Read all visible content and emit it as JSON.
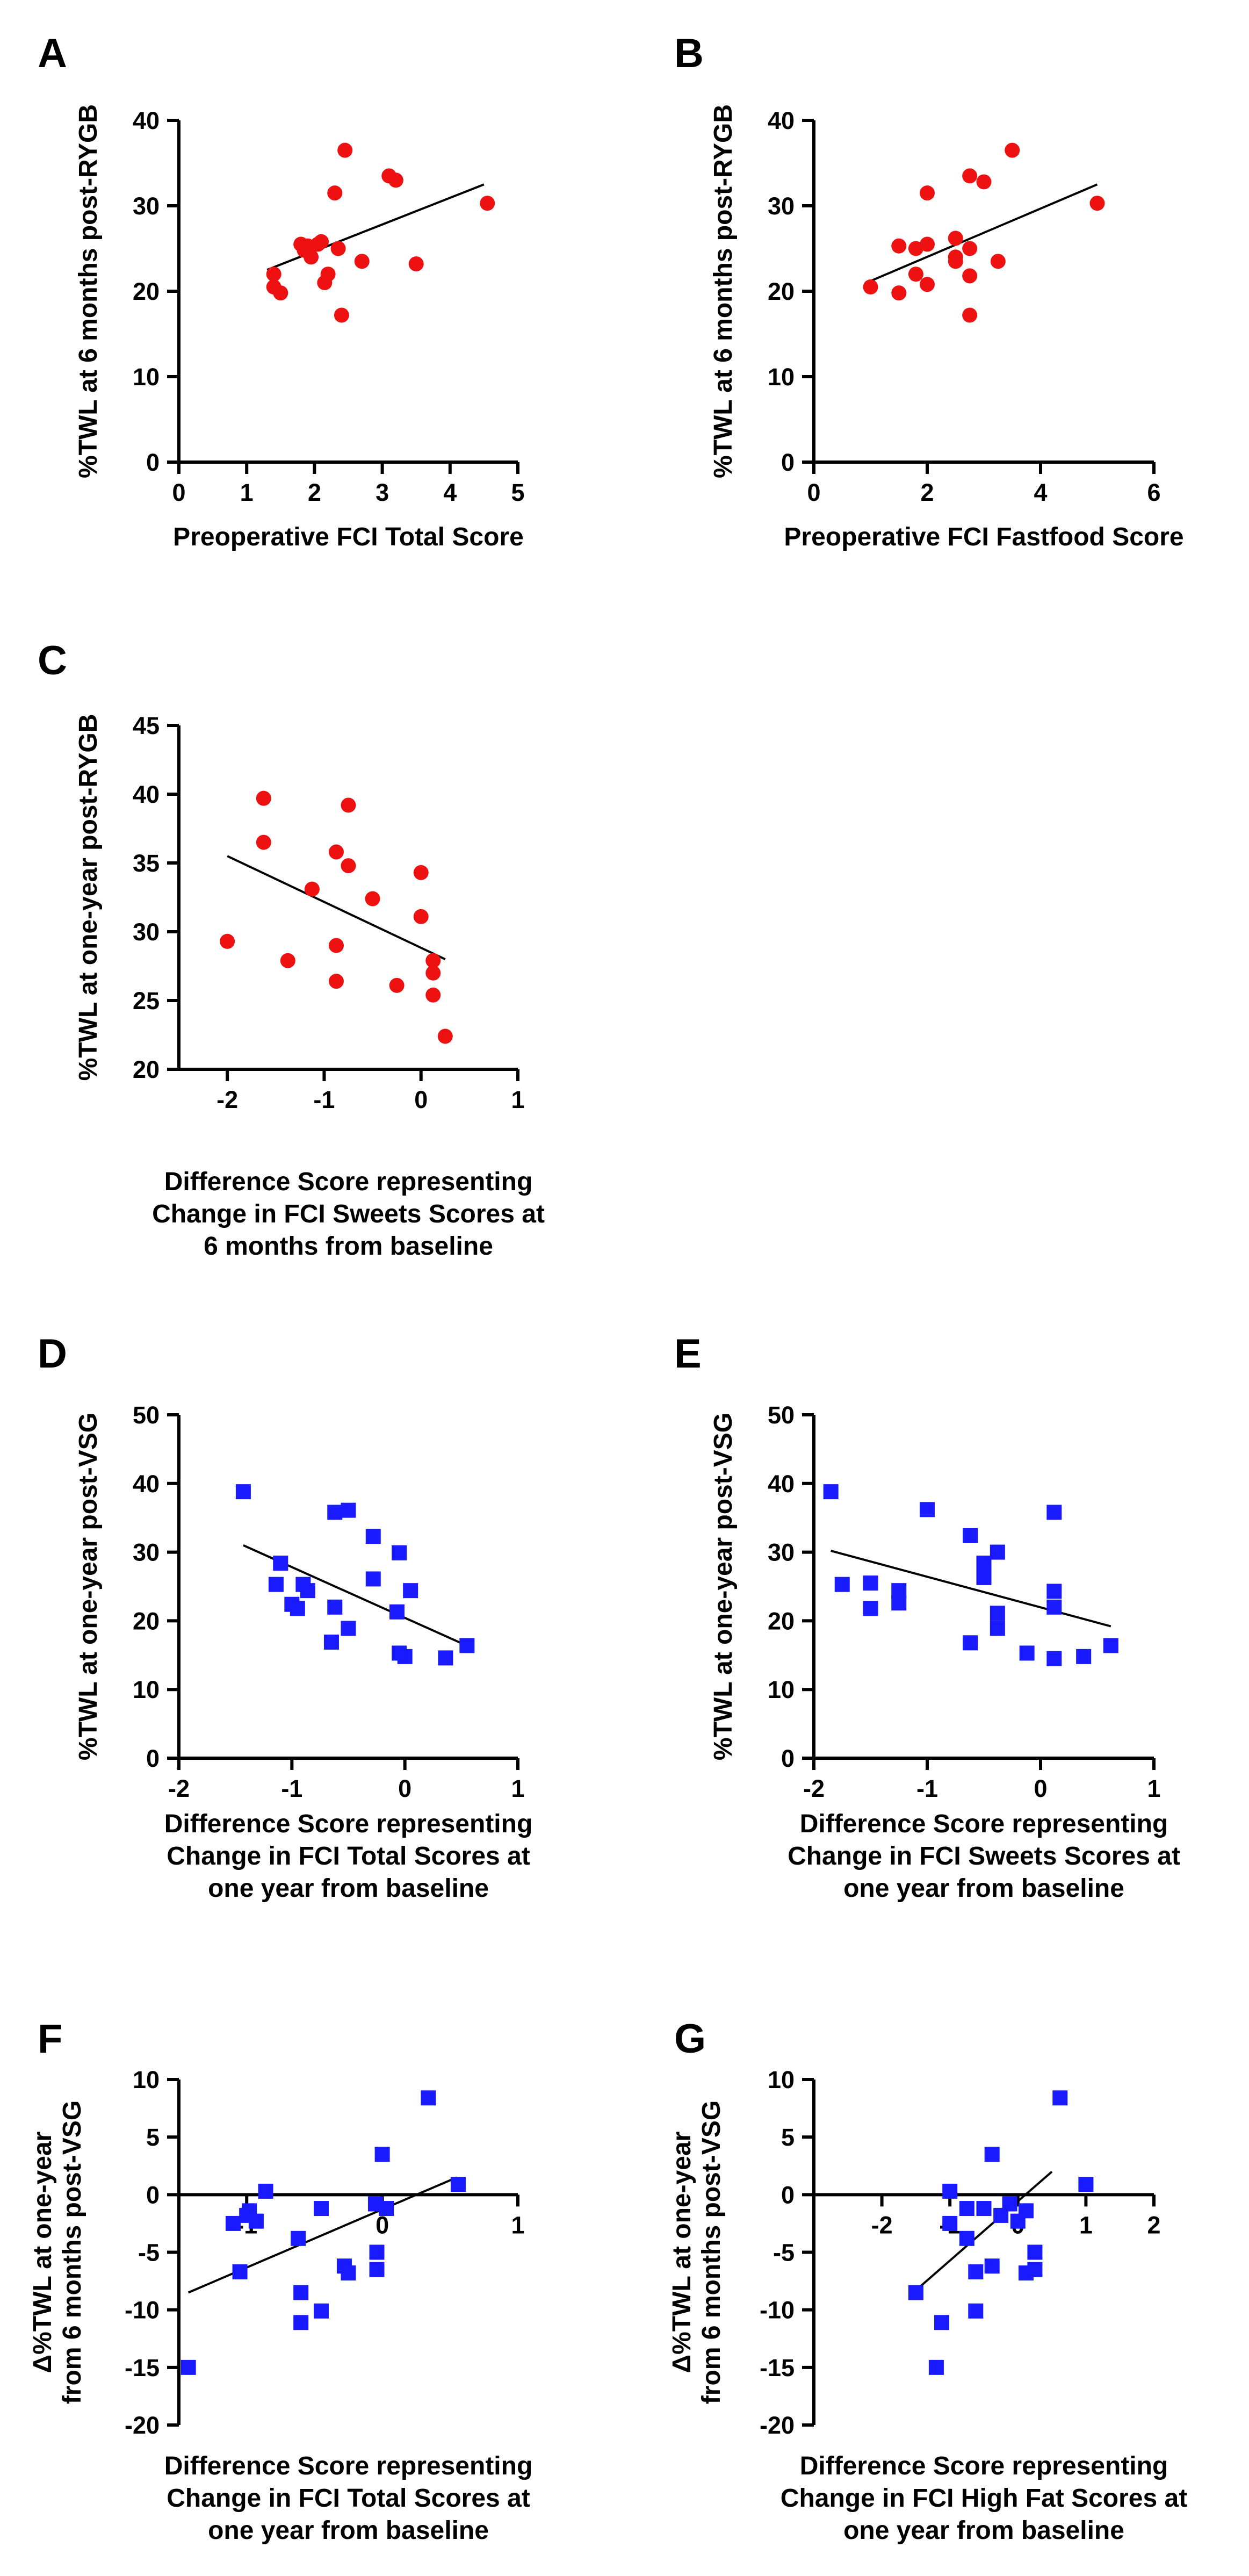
{
  "colors": {
    "red": "#ee1111",
    "blue": "#1a1aff",
    "axis": "#000000"
  },
  "chart_data": [
    {
      "panel": "A",
      "type": "scatter",
      "marker": "circle",
      "color": "#ee1111",
      "xlabel": [
        "Preoperative FCI Total Score"
      ],
      "ylabel": [
        "%TWL at 6 months post-RYGB"
      ],
      "xlim": [
        0,
        5
      ],
      "ylim": [
        0,
        40
      ],
      "xticks": [
        0,
        1,
        2,
        3,
        4,
        5
      ],
      "yticks": [
        0,
        10,
        20,
        30,
        40
      ],
      "fit_line": [
        [
          1.3,
          22.5
        ],
        [
          4.5,
          32.5
        ]
      ],
      "points": [
        [
          1.4,
          22.0
        ],
        [
          1.4,
          20.5
        ],
        [
          1.5,
          19.8
        ],
        [
          1.8,
          25.5
        ],
        [
          1.85,
          24.8
        ],
        [
          1.9,
          25.3
        ],
        [
          1.95,
          24.0
        ],
        [
          2.05,
          25.5
        ],
        [
          2.1,
          25.8
        ],
        [
          2.15,
          21.0
        ],
        [
          2.2,
          22.0
        ],
        [
          2.3,
          31.5
        ],
        [
          2.35,
          25.0
        ],
        [
          2.4,
          17.2
        ],
        [
          2.45,
          36.5
        ],
        [
          2.7,
          23.5
        ],
        [
          3.1,
          33.5
        ],
        [
          3.2,
          33.0
        ],
        [
          3.5,
          23.2
        ],
        [
          4.55,
          30.3
        ]
      ]
    },
    {
      "panel": "B",
      "type": "scatter",
      "marker": "circle",
      "color": "#ee1111",
      "xlabel": [
        "Preoperative FCI Fastfood Score"
      ],
      "ylabel": [
        "%TWL at 6 months post-RYGB"
      ],
      "xlim": [
        0,
        6
      ],
      "ylim": [
        0,
        40
      ],
      "xticks": [
        0,
        2,
        4,
        6
      ],
      "yticks": [
        0,
        10,
        20,
        30,
        40
      ],
      "fit_line": [
        [
          1.0,
          21.2
        ],
        [
          5.0,
          32.5
        ]
      ],
      "points": [
        [
          1.0,
          20.5
        ],
        [
          1.5,
          19.8
        ],
        [
          1.5,
          25.3
        ],
        [
          1.8,
          25.0
        ],
        [
          1.8,
          22.0
        ],
        [
          2.0,
          25.5
        ],
        [
          2.0,
          31.5
        ],
        [
          2.0,
          20.8
        ],
        [
          2.5,
          24.0
        ],
        [
          2.5,
          23.5
        ],
        [
          2.5,
          26.2
        ],
        [
          2.75,
          33.5
        ],
        [
          2.75,
          25.0
        ],
        [
          2.75,
          21.8
        ],
        [
          2.75,
          17.2
        ],
        [
          3.0,
          32.8
        ],
        [
          3.25,
          23.5
        ],
        [
          3.5,
          36.5
        ],
        [
          5.0,
          30.3
        ]
      ]
    },
    {
      "panel": "C",
      "type": "scatter",
      "marker": "circle",
      "color": "#ee1111",
      "xlabel": [
        "Difference Score representing",
        "Change in FCI Sweets Scores at",
        "6 months from baseline"
      ],
      "ylabel": [
        "%TWL at one-year post-RYGB"
      ],
      "xlim": [
        -2.5,
        1
      ],
      "ylim": [
        20,
        45
      ],
      "xticks": [
        -2,
        -1,
        0,
        1
      ],
      "yticks": [
        20,
        25,
        30,
        35,
        40,
        45
      ],
      "fit_line": [
        [
          -2.0,
          35.5
        ],
        [
          0.25,
          28.0
        ]
      ],
      "points": [
        [
          -2.0,
          29.3
        ],
        [
          -1.625,
          39.7
        ],
        [
          -1.625,
          36.5
        ],
        [
          -1.375,
          27.9
        ],
        [
          -1.125,
          33.1
        ],
        [
          -0.875,
          35.8
        ],
        [
          -0.875,
          29.0
        ],
        [
          -0.875,
          26.4
        ],
        [
          -0.75,
          39.2
        ],
        [
          -0.75,
          34.8
        ],
        [
          -0.5,
          32.4
        ],
        [
          -0.25,
          26.1
        ],
        [
          0.0,
          34.3
        ],
        [
          0.0,
          31.1
        ],
        [
          0.125,
          27.9
        ],
        [
          0.125,
          27.0
        ],
        [
          0.125,
          25.4
        ],
        [
          0.25,
          22.4
        ]
      ]
    },
    {
      "panel": "D",
      "type": "scatter",
      "marker": "square",
      "color": "#1a1aff",
      "xlabel": [
        "Difference Score representing",
        "Change in FCI Total Scores at",
        "one year from baseline"
      ],
      "ylabel": [
        "%TWL at one-year post-VSG"
      ],
      "xlim": [
        -2,
        1
      ],
      "ylim": [
        0,
        50
      ],
      "xticks": [
        -2,
        -1,
        0,
        1
      ],
      "yticks": [
        0,
        10,
        20,
        30,
        40,
        50
      ],
      "fit_line": [
        [
          -1.43,
          31.0
        ],
        [
          0.56,
          16.3
        ]
      ],
      "points": [
        [
          -1.43,
          38.8
        ],
        [
          -1.1,
          28.4
        ],
        [
          -1.14,
          25.3
        ],
        [
          -1.0,
          22.4
        ],
        [
          -0.95,
          21.8
        ],
        [
          -0.9,
          25.3
        ],
        [
          -0.86,
          24.4
        ],
        [
          -0.62,
          35.8
        ],
        [
          -0.5,
          36.1
        ],
        [
          -0.65,
          16.9
        ],
        [
          -0.62,
          22.0
        ],
        [
          -0.5,
          18.9
        ],
        [
          -0.28,
          32.3
        ],
        [
          -0.28,
          26.1
        ],
        [
          -0.05,
          29.9
        ],
        [
          -0.07,
          21.3
        ],
        [
          -0.05,
          15.3
        ],
        [
          0.0,
          14.8
        ],
        [
          0.05,
          24.4
        ],
        [
          0.36,
          14.6
        ],
        [
          0.55,
          16.4
        ]
      ]
    },
    {
      "panel": "E",
      "type": "scatter",
      "marker": "square",
      "color": "#1a1aff",
      "xlabel": [
        "Difference Score representing",
        "Change in FCI Sweets Scores at",
        "one year from baseline"
      ],
      "ylabel": [
        "%TWL at one-year post-VSG"
      ],
      "xlim": [
        -2,
        1
      ],
      "ylim": [
        0,
        50
      ],
      "xticks": [
        -2,
        -1,
        0,
        1
      ],
      "yticks": [
        0,
        10,
        20,
        30,
        40,
        50
      ],
      "fit_line": [
        [
          -1.85,
          30.2
        ],
        [
          0.62,
          19.2
        ]
      ],
      "points": [
        [
          -1.85,
          38.8
        ],
        [
          -1.75,
          25.3
        ],
        [
          -1.5,
          25.5
        ],
        [
          -1.5,
          21.8
        ],
        [
          -1.25,
          24.4
        ],
        [
          -1.25,
          22.6
        ],
        [
          -1.0,
          36.2
        ],
        [
          -0.62,
          32.4
        ],
        [
          -0.62,
          16.8
        ],
        [
          -0.5,
          28.4
        ],
        [
          -0.5,
          26.3
        ],
        [
          -0.38,
          30.0
        ],
        [
          -0.38,
          21.1
        ],
        [
          -0.38,
          18.9
        ],
        [
          -0.12,
          15.3
        ],
        [
          0.12,
          35.8
        ],
        [
          0.12,
          24.3
        ],
        [
          0.12,
          22.0
        ],
        [
          0.12,
          14.5
        ],
        [
          0.38,
          14.8
        ],
        [
          0.62,
          16.4
        ]
      ]
    },
    {
      "panel": "F",
      "type": "scatter",
      "marker": "square",
      "color": "#1a1aff",
      "xlabel": [
        "Difference Score representing",
        "Change in FCI Total Scores at",
        "one year from baseline"
      ],
      "ylabel": [
        "Δ%TWL at one-year",
        "from 6 months post-VSG"
      ],
      "xlim": [
        -1.5,
        1
      ],
      "ylim": [
        -20,
        10
      ],
      "xticks": [
        -1,
        0,
        1
      ],
      "xtick_labels": [
        "-1",
        "0",
        "1"
      ],
      "yticks": [
        -20,
        -15,
        -10,
        -5,
        0,
        5,
        10
      ],
      "fit_line": [
        [
          -1.43,
          -8.5
        ],
        [
          0.55,
          1.5
        ]
      ],
      "points": [
        [
          -1.43,
          -15.0
        ],
        [
          -1.1,
          -2.5
        ],
        [
          -1.05,
          -6.7
        ],
        [
          -1.0,
          -1.8
        ],
        [
          -0.98,
          -1.4
        ],
        [
          -0.93,
          -2.3
        ],
        [
          -0.86,
          0.3
        ],
        [
          -0.62,
          -3.8
        ],
        [
          -0.6,
          -8.5
        ],
        [
          -0.6,
          -11.1
        ],
        [
          -0.45,
          -1.2
        ],
        [
          -0.45,
          -10.1
        ],
        [
          -0.28,
          -6.2
        ],
        [
          -0.25,
          -6.8
        ],
        [
          -0.05,
          -0.8
        ],
        [
          -0.04,
          -5.0
        ],
        [
          -0.04,
          -6.5
        ],
        [
          0.0,
          3.5
        ],
        [
          0.03,
          -1.2
        ],
        [
          0.34,
          8.4
        ],
        [
          0.56,
          0.9
        ]
      ]
    },
    {
      "panel": "G",
      "type": "scatter",
      "marker": "square",
      "color": "#1a1aff",
      "xlabel": [
        "Difference Score representing",
        "Change in FCI High Fat Scores at",
        "one year from baseline"
      ],
      "ylabel": [
        "Δ%TWL at one-year",
        "from 6 months post-VSG"
      ],
      "xlim": [
        -3,
        2
      ],
      "ylim": [
        -20,
        10
      ],
      "xticks": [
        -2,
        -1,
        0,
        1,
        2
      ],
      "xtick_labels": [
        "-2",
        "-1",
        "0",
        "1",
        "2"
      ],
      "yticks": [
        -20,
        -15,
        -10,
        -5,
        0,
        5,
        10
      ],
      "fit_line": [
        [
          -1.5,
          -8.3
        ],
        [
          0.5,
          2.0
        ]
      ],
      "points": [
        [
          -1.5,
          -8.5
        ],
        [
          -1.2,
          -15.0
        ],
        [
          -1.12,
          -11.1
        ],
        [
          -1.0,
          0.3
        ],
        [
          -1.0,
          -2.5
        ],
        [
          -0.75,
          -1.2
        ],
        [
          -0.75,
          -3.8
        ],
        [
          -0.62,
          -6.7
        ],
        [
          -0.62,
          -10.1
        ],
        [
          -0.5,
          -1.2
        ],
        [
          -0.38,
          3.5
        ],
        [
          -0.38,
          -6.2
        ],
        [
          -0.25,
          -1.8
        ],
        [
          -0.12,
          -0.8
        ],
        [
          0.0,
          -2.3
        ],
        [
          0.12,
          -1.4
        ],
        [
          0.12,
          -6.8
        ],
        [
          0.25,
          -5.0
        ],
        [
          0.25,
          -6.5
        ],
        [
          0.62,
          8.4
        ],
        [
          1.0,
          0.9
        ]
      ]
    }
  ]
}
